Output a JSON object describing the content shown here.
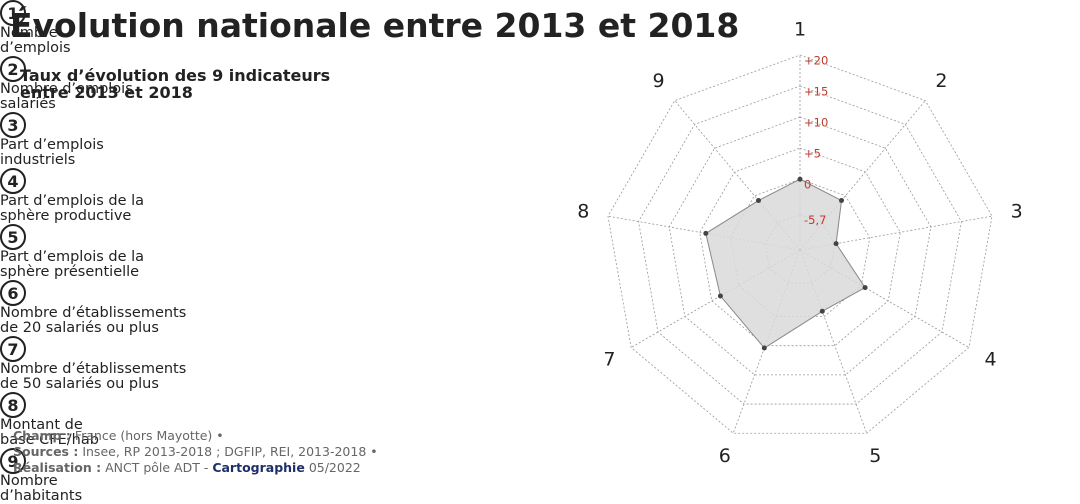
{
  "chart_data": {
    "type": "radar",
    "title": "Évolution nationale entre 2013 et 2018",
    "subtitle": [
      "Taux d’évolution des 9 indicateurs",
      "entre 2013 et 2018"
    ],
    "categories": [
      "1",
      "2",
      "3",
      "4",
      "5",
      "6",
      "7",
      "8",
      "9"
    ],
    "legend": [
      [
        "Nombre",
        "d’emplois"
      ],
      [
        "Nombre d’emplois",
        "salariés"
      ],
      [
        "Part d’emplois",
        "industriels"
      ],
      [
        "Part d’emplois de la",
        "sphère productive"
      ],
      [
        "Part d’emplois de la",
        "sphère présentielle"
      ],
      [
        "Nombre d’établissements",
        "de 20 salariés ou plus"
      ],
      [
        "Nombre d’établissements",
        "de 50 salariés ou plus"
      ],
      [
        "Montant de",
        "base CFE/hab"
      ],
      [
        "Nombre",
        "d’habitants"
      ]
    ],
    "values": [
      0,
      -1,
      -5.5,
      0.7,
      -0.9,
      5.4,
      3.4,
      4,
      -1
    ],
    "color": "#d9d9d9",
    "rlim": [
      -11.4,
      20
    ],
    "rticks": [
      {
        "value": -5.7,
        "label": "-5,7"
      },
      0,
      {
        "value": 5,
        "label": "+5"
      },
      {
        "value": 10,
        "label": "+10"
      },
      {
        "value": 15,
        "label": "+15"
      },
      {
        "value": 20,
        "label": "+20"
      }
    ],
    "grid": true,
    "notes": [
      [
        [
          "Champ :",
          true
        ],
        [
          "France (hors Mayotte) •",
          false
        ]
      ],
      [
        [
          "Sources :",
          true
        ],
        [
          "Insee, RP 2013-2018 ; DGFIP, REI, 2013-2018 •",
          false
        ]
      ],
      [
        [
          "Réalisation :",
          true
        ],
        [
          "ANCT pôle ADT -",
          false
        ],
        [
          "Cartographie",
          true,
          "#1f2f6b"
        ],
        [
          "05/2022",
          false
        ]
      ]
    ]
  }
}
